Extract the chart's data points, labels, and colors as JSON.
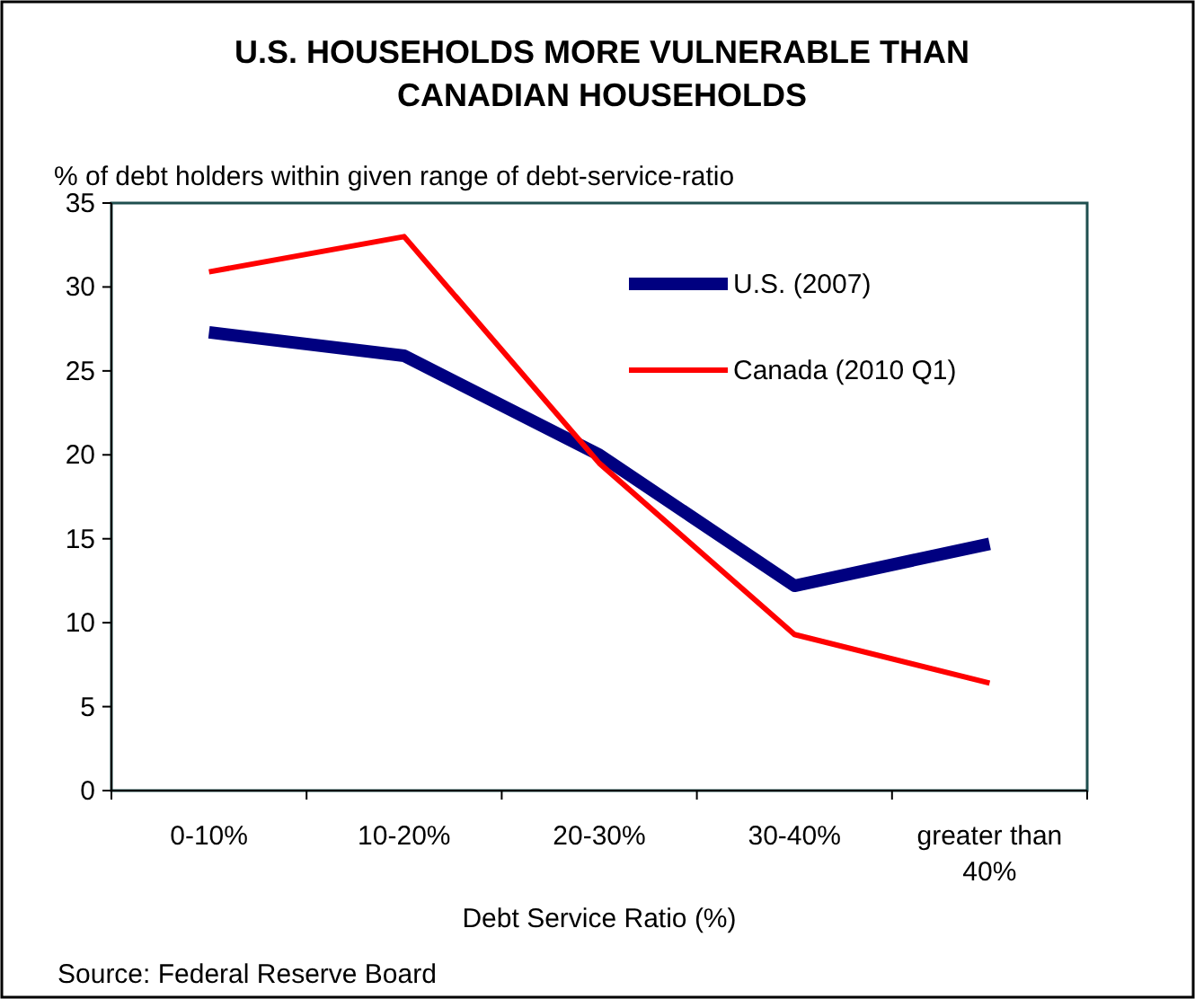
{
  "chart_data": {
    "type": "line",
    "title": "U.S. HOUSEHOLDS MORE VULNERABLE THAN CANADIAN HOUSEHOLDS",
    "ylabel": "% of debt holders within given range of debt-service-ratio",
    "xlabel": "Debt Service Ratio (%)",
    "categories": [
      "0-10%",
      "10-20%",
      "20-30%",
      "30-40%",
      "greater than 40%"
    ],
    "series": [
      {
        "name": "U.S. (2007)",
        "color": "#000080",
        "values": [
          27.3,
          25.9,
          20,
          12.2,
          14.7
        ]
      },
      {
        "name": "Canada (2010 Q1)",
        "color": "#ff0000",
        "values": [
          30.9,
          33,
          19.5,
          9.3,
          6.4
        ]
      }
    ],
    "ylim": [
      0,
      35
    ],
    "yticks": [
      0,
      5,
      10,
      15,
      20,
      25,
      30,
      35
    ],
    "grid": false,
    "legend": "top right",
    "marker": "none",
    "annotations": [
      "Source: Federal Reserve Board"
    ]
  }
}
